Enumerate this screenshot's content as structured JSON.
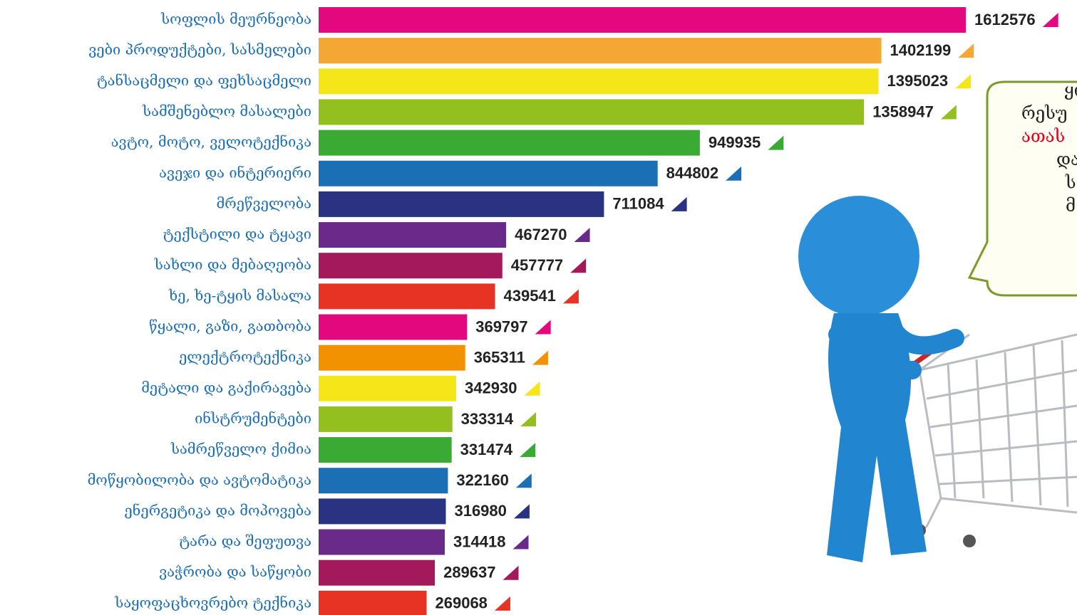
{
  "chart_data": {
    "type": "bar",
    "orientation": "horizontal",
    "categories": [
      "სოფლის მეურნეობა",
      "ვები პროდუქტები,  სასმელები",
      "ტანსაცმელი და ფეხსაცმელი",
      "სამშენებლო მასალები",
      "ავტო, მოტო, ველოტექნიკა",
      "ავეჯი და ინტერიერი",
      "მრეწველობა",
      "ტექსტილი და ტყავი",
      "სახლი და მებაღეობა",
      "ხე, ხე-ტყის მასალა",
      "წყალი, გაზი, გათბობა",
      "ელექტროტექნიკა",
      "მეტალი და გაქირავება",
      "ინსტრუმენტები",
      "სამრეწველო ქიმია",
      "მოწყობილობა და ავტომატიკა",
      "ენერგეტიკა და მოპოვება",
      "ტარა და შეფუთვა",
      "ვაჭრობა და საწყობი",
      "საყოფაცხოვრებო ტექნიკა"
    ],
    "values": [
      1612576,
      1402199,
      1395023,
      1358947,
      949935,
      844802,
      711084,
      467270,
      457777,
      439541,
      369797,
      365311,
      342930,
      333314,
      331474,
      322160,
      316980,
      314418,
      289637,
      269068
    ],
    "colors": [
      "#e4087e",
      "#f5a733",
      "#f5e61a",
      "#93c01f",
      "#3aaa35",
      "#1a6fb5",
      "#2a3282",
      "#6a2a8a",
      "#a3195b",
      "#e63323",
      "#e4087e",
      "#f39200",
      "#f5e61a",
      "#93c01f",
      "#3aaa35",
      "#1a6fb5",
      "#2a3282",
      "#6a2a8a",
      "#a3195b",
      "#e63323"
    ]
  },
  "callout": {
    "lines": [
      {
        "text": "ყი",
        "color": "#222222"
      },
      {
        "text": "რესუ",
        "color": "#222222"
      },
      {
        "text": "ათას",
        "color": "#e3001b"
      },
      {
        "text": "და",
        "color": "#222222"
      },
      {
        "text": "ს",
        "color": "#222222"
      },
      {
        "text": "მ",
        "color": "#222222"
      }
    ]
  }
}
